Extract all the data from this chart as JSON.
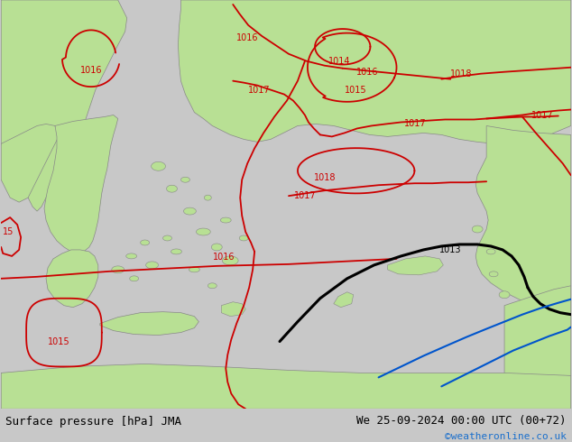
{
  "title_left": "Surface pressure [hPa] JMA",
  "title_right": "We 25-09-2024 00:00 UTC (00+72)",
  "copyright": "©weatheronline.co.uk",
  "bg_color": "#c8c8c8",
  "land_color": "#b8e094",
  "sea_color": "#d8d8d8",
  "contour_color_red": "#cc0000",
  "contour_color_black": "#000000",
  "contour_color_blue": "#0055cc",
  "bottom_bar_color": "#e8e8e8",
  "bottom_text_color": "#000000",
  "copyright_color": "#1a6fcc",
  "figsize": [
    6.34,
    4.9
  ],
  "dpi": 100
}
